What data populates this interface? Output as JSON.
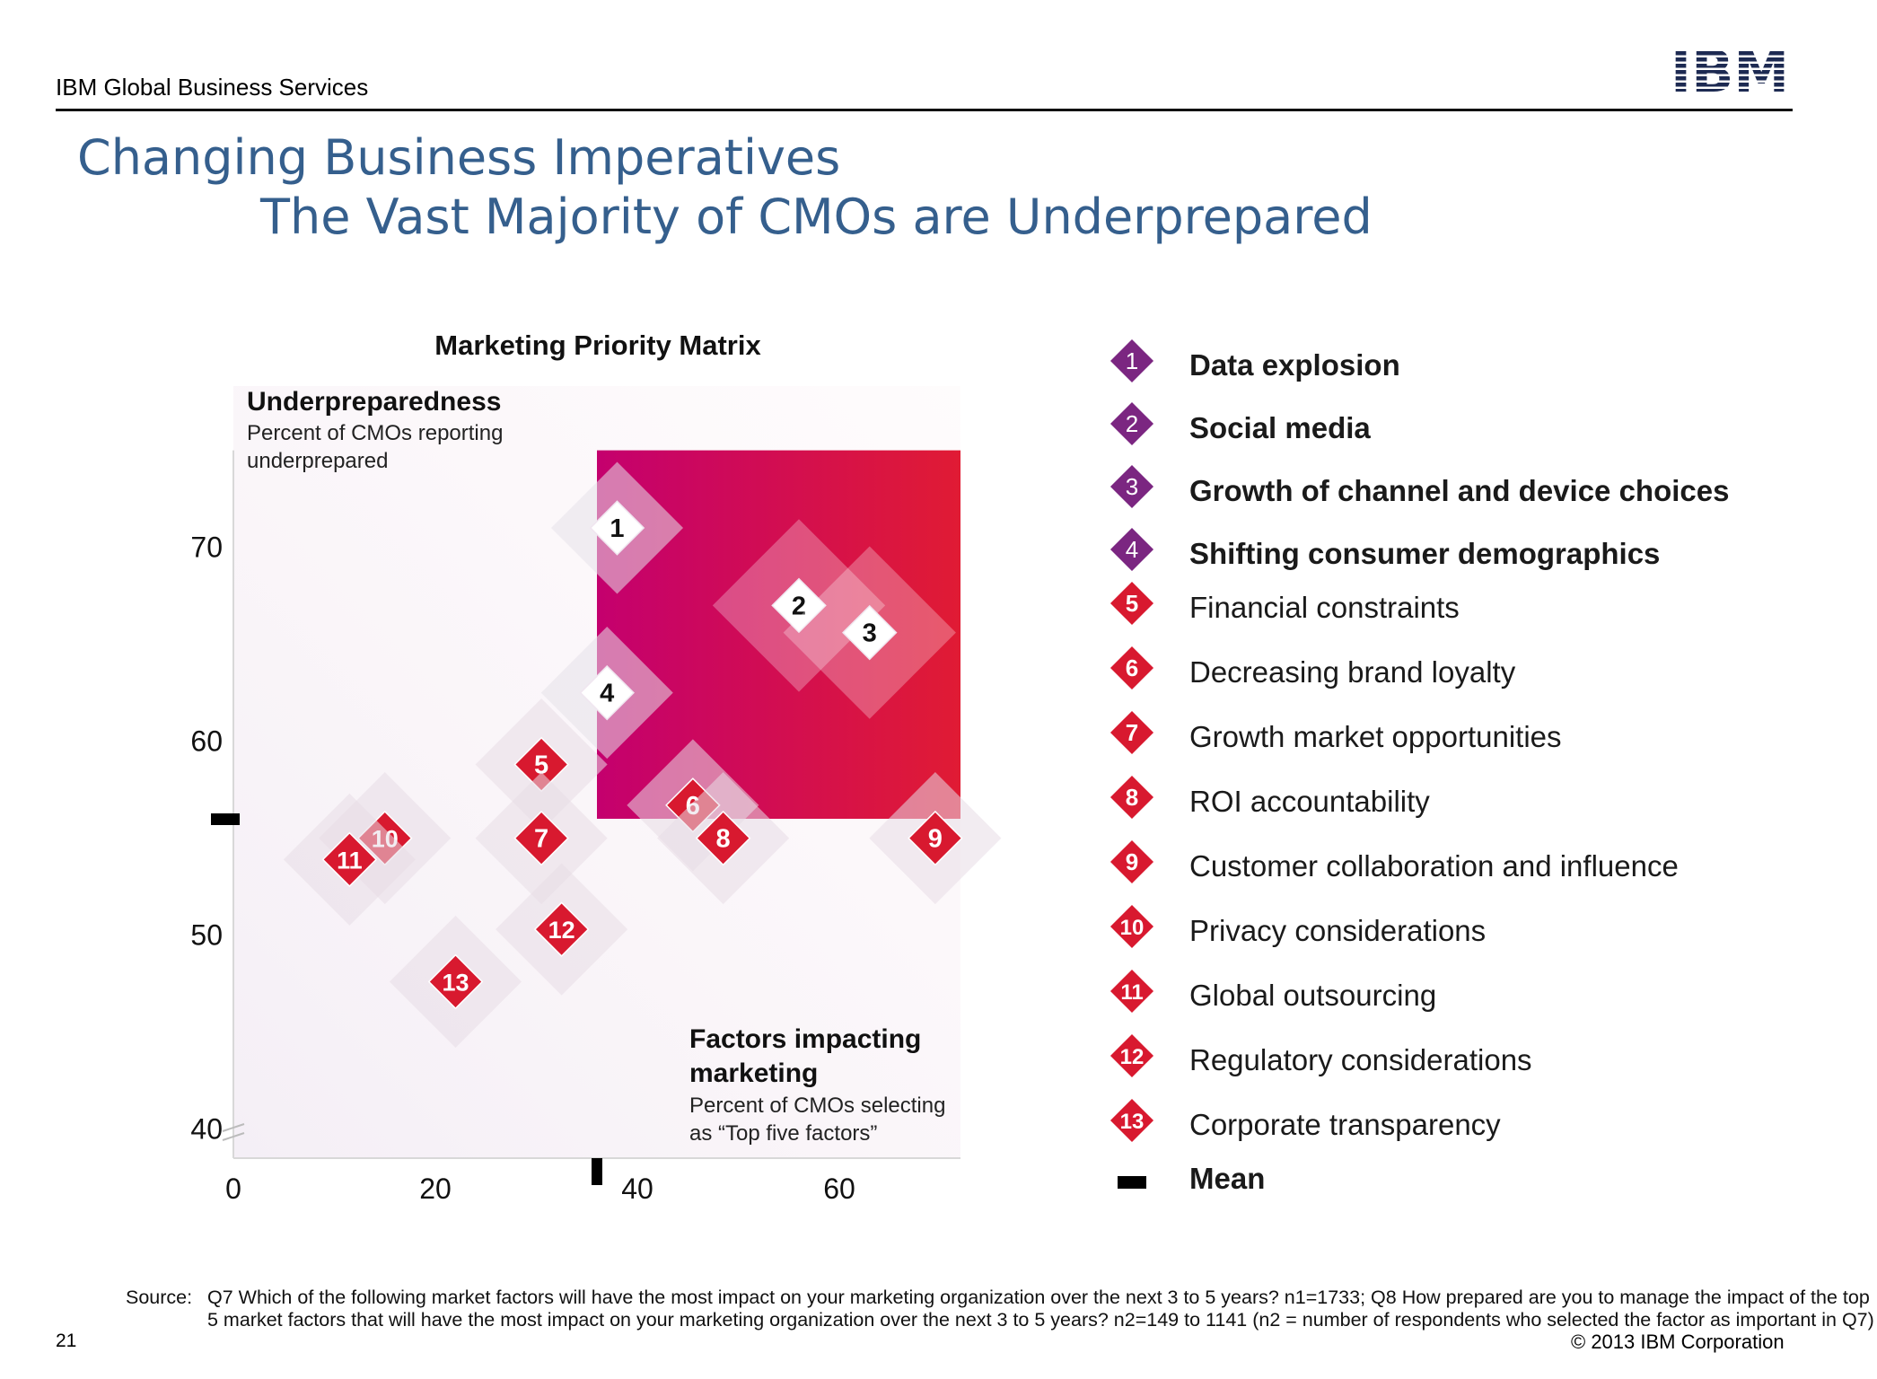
{
  "header": {
    "org": "IBM Global Business Services",
    "logo_text": "IBM",
    "title_line1": "Changing Business Imperatives",
    "title_line2": "The Vast Majority of CMOs are Underprepared"
  },
  "chart_data": {
    "type": "scatter",
    "title": "Marketing Priority Matrix",
    "ylabel": "Underpreparedness",
    "ylabel_sub": "Percent of CMOs reporting underprepared",
    "xlabel": "Factors impacting marketing",
    "xlabel_sub": "Percent of CMOs selecting as “Top five factors”",
    "x_ticks": [
      0,
      20,
      40,
      60
    ],
    "y_ticks": [
      40,
      50,
      60,
      70
    ],
    "xlim": [
      0,
      72
    ],
    "ylim": [
      38.5,
      75
    ],
    "mean": {
      "x": 36,
      "y": 56
    },
    "points": [
      {
        "id": "1",
        "x": 38,
        "y": 71
      },
      {
        "id": "2",
        "x": 56,
        "y": 67
      },
      {
        "id": "3",
        "x": 63,
        "y": 65.6
      },
      {
        "id": "4",
        "x": 37,
        "y": 62.5
      },
      {
        "id": "5",
        "x": 30.5,
        "y": 58.8
      },
      {
        "id": "6",
        "x": 45.5,
        "y": 56.7
      },
      {
        "id": "7",
        "x": 30.5,
        "y": 55
      },
      {
        "id": "8",
        "x": 48.5,
        "y": 55
      },
      {
        "id": "9",
        "x": 69.5,
        "y": 55
      },
      {
        "id": "10",
        "x": 15,
        "y": 55
      },
      {
        "id": "11",
        "x": 11.5,
        "y": 53.9
      },
      {
        "id": "12",
        "x": 32.5,
        "y": 50.3
      },
      {
        "id": "13",
        "x": 22,
        "y": 47.6
      }
    ],
    "colors": {
      "top_group": "#7b2681",
      "other": "#d8192f",
      "quadrant_left": "#c4006e",
      "quadrant_right": "#e01b34"
    }
  },
  "legend": [
    {
      "id": "1",
      "label": "Data explosion",
      "group": "top"
    },
    {
      "id": "2",
      "label": "Social media",
      "group": "top"
    },
    {
      "id": "3",
      "label": "Growth of channel and device choices",
      "group": "top"
    },
    {
      "id": "4",
      "label": "Shifting consumer demographics",
      "group": "top"
    },
    {
      "id": "5",
      "label": "Financial constraints",
      "group": "other"
    },
    {
      "id": "6",
      "label": "Decreasing brand loyalty",
      "group": "other"
    },
    {
      "id": "7",
      "label": "Growth market opportunities",
      "group": "other"
    },
    {
      "id": "8",
      "label": "ROI accountability",
      "group": "other"
    },
    {
      "id": "9",
      "label": "Customer collaboration and influence",
      "group": "other"
    },
    {
      "id": "10",
      "label": "Privacy considerations",
      "group": "other"
    },
    {
      "id": "11",
      "label": "Global outsourcing",
      "group": "other"
    },
    {
      "id": "12",
      "label": "Regulatory considerations",
      "group": "other"
    },
    {
      "id": "13",
      "label": "Corporate transparency",
      "group": "other"
    }
  ],
  "legend_mean_label": "Mean",
  "footer": {
    "source_label": "Source:",
    "source_text": "Q7  Which of the following market factors will have the most impact on your marketing organization over the next 3 to 5 years? n1=1733; Q8  How prepared are you to manage the impact of the top 5 market factors that will have the most impact on your marketing organization over the next 3 to 5 years? n2=149 to 1141 (n2 = number of respondents who selected the factor as important in Q7)",
    "page_number": "21",
    "copyright": "© 2013 IBM Corporation"
  }
}
